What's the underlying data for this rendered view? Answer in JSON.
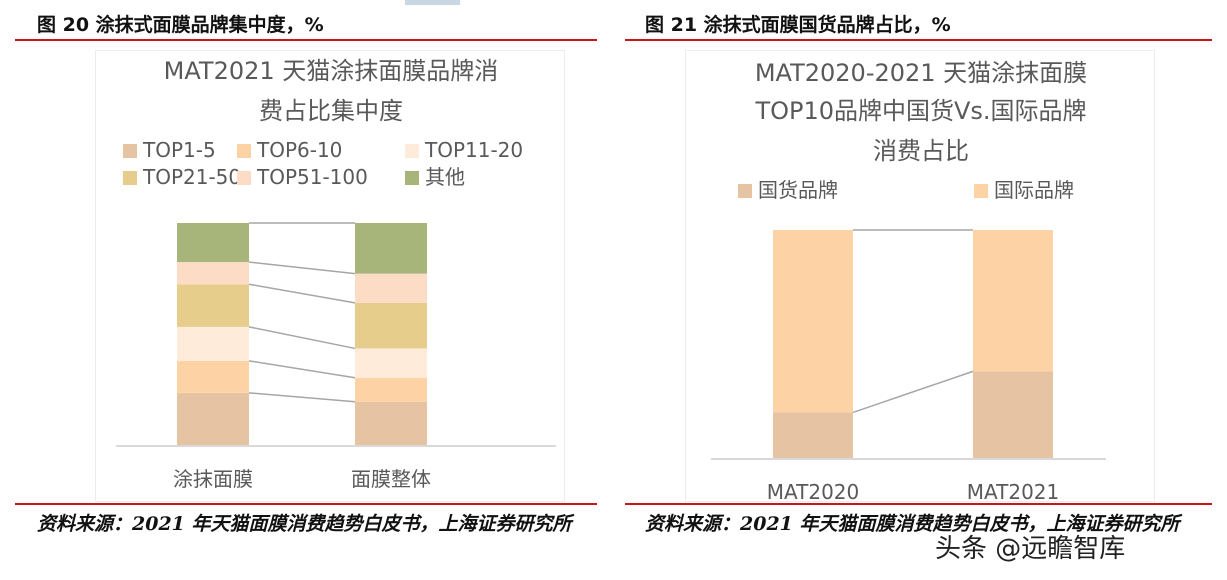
{
  "figures": [
    {
      "title": "图 20 涂抹式面膜品牌集中度，%",
      "source": "资料来源：2021 年天猫面膜消费趋势白皮书，上海证券研究所"
    },
    {
      "title": "图 21 涂抹式面膜国货品牌占比，%",
      "source": "资料来源：2021 年天猫面膜消费趋势白皮书，上海证券研究所"
    }
  ],
  "watermark": "头条 @远瞻智库",
  "chart_data": [
    {
      "type": "bar",
      "stacked": true,
      "title": "MAT2021 天猫涂抹面膜品牌消费占比集中度",
      "title_lines": [
        "MAT2021 天猫涂抹面膜品牌消",
        "费占比集中度"
      ],
      "categories": [
        "涂抹面膜",
        "面膜整体"
      ],
      "series": [
        {
          "name": "TOP1-5",
          "color": "#e6c3a3",
          "values": [
            23.5,
            19.5
          ]
        },
        {
          "name": "TOP6-10",
          "color": "#fdd3a5",
          "values": [
            14.4,
            10.8
          ]
        },
        {
          "name": "TOP11-20",
          "color": "#feebd9",
          "values": [
            15.3,
            13.2
          ]
        },
        {
          "name": "TOP21-50",
          "color": "#e6cd8c",
          "values": [
            19.2,
            20.5
          ]
        },
        {
          "name": "TOP51-100",
          "color": "#fddcc6",
          "values": [
            10.0,
            13.2
          ]
        },
        {
          "name": "其他",
          "color": "#a7b47a",
          "values": [
            17.6,
            22.8
          ]
        }
      ],
      "ylim": [
        0,
        100
      ],
      "legend": "top"
    },
    {
      "type": "bar",
      "stacked": true,
      "title": "MAT2020-2021 天猫涂抹面膜TOP10品牌中国货Vs.国际品牌消费占比",
      "title_lines": [
        "MAT2020-2021 天猫涂抹面膜",
        "TOP10品牌中国货Vs.国际品牌",
        "消费占比"
      ],
      "categories": [
        "MAT2020",
        "MAT2021"
      ],
      "series": [
        {
          "name": "国货品牌",
          "color": "#e6c3a3",
          "values": [
            20,
            38
          ]
        },
        {
          "name": "国际品牌",
          "color": "#fdd3a5",
          "values": [
            80,
            62
          ]
        }
      ],
      "ylim": [
        0,
        100
      ],
      "legend": "top"
    }
  ]
}
